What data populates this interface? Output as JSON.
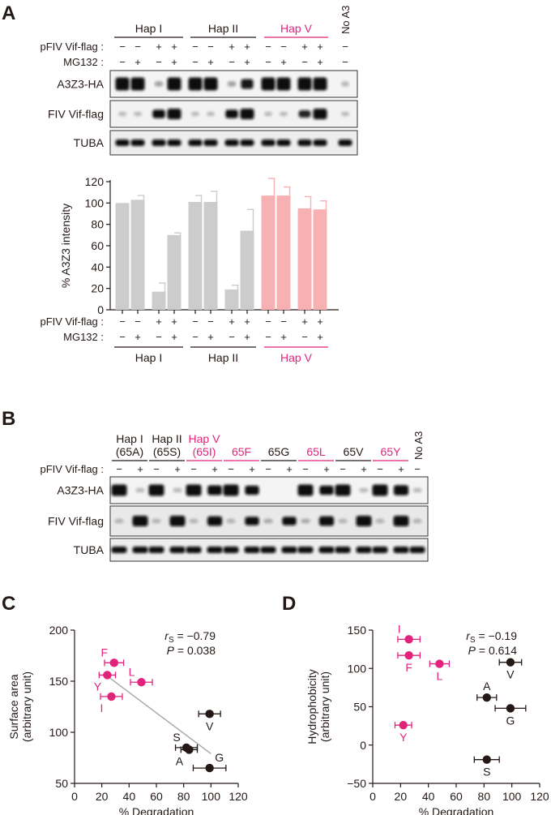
{
  "panel_labels": {
    "a": "A",
    "b": "B",
    "c": "C",
    "d": "D"
  },
  "colors": {
    "black": "#231815",
    "magenta": "#e2237c",
    "gray_bar": "#cccccc",
    "pink_bar": "#f7b1b3",
    "fit_line": "#aaaaaa"
  },
  "panel_a": {
    "groups": [
      "Hap I",
      "Hap II",
      "Hap V"
    ],
    "group_colors": [
      "#231815",
      "#231815",
      "#e2237c"
    ],
    "no_a3": "No A3",
    "row_labels": [
      "pFIV Vif-flag :",
      "MG132 :"
    ],
    "vif_signs": [
      "−",
      "−",
      "+",
      "+",
      "−",
      "−",
      "+",
      "+",
      "−",
      "−",
      "+",
      "+",
      "−"
    ],
    "mg_signs": [
      "−",
      "+",
      "−",
      "+",
      "−",
      "+",
      "−",
      "+",
      "−",
      "+",
      "−",
      "+",
      "−"
    ],
    "blot_labels": [
      "A3Z3-HA",
      "FIV Vif-flag",
      "TUBA"
    ],
    "blot_a3z3": [
      1,
      1,
      0.15,
      1,
      1,
      1,
      0.15,
      0.75,
      1,
      1,
      1,
      1,
      0.05
    ],
    "blot_vif": [
      0.05,
      0.05,
      0.8,
      1,
      0.05,
      0.05,
      0.8,
      1,
      0.05,
      0.05,
      0.7,
      1,
      0.05
    ],
    "blot_tuba": [
      1,
      1,
      1,
      1,
      1,
      1,
      1,
      1,
      1,
      1,
      1,
      1,
      1
    ]
  },
  "panel_b": {
    "headers": [
      "Hap I\n(65A)",
      "Hap II\n(65S)",
      "Hap V\n(65I)",
      "65F",
      "65G",
      "65L",
      "65V",
      "65Y"
    ],
    "header_colors": [
      "#231815",
      "#231815",
      "#e2237c",
      "#e2237c",
      "#231815",
      "#e2237c",
      "#231815",
      "#e2237c"
    ],
    "no_a3": "No A3",
    "row_label": "pFIV Vif-flag :",
    "signs": [
      "−",
      "+",
      "−",
      "+",
      "−",
      "+",
      "−",
      "+",
      "−",
      "+",
      "−",
      "+",
      "−",
      "+",
      "−",
      "+",
      "−"
    ],
    "blot_labels": [
      "A3Z3-HA",
      "FIV Vif-flag",
      "TUBA"
    ],
    "blot_a3z3": [
      1,
      0.05,
      1,
      0.05,
      1,
      0.85,
      1,
      0.8,
      0,
      0,
      1,
      0.8,
      1,
      0.05,
      1,
      0.9,
      0.05
    ],
    "blot_vif": [
      0.05,
      1,
      0.05,
      1,
      0.05,
      0.9,
      0.05,
      0.8,
      0.1,
      0.8,
      0.1,
      0.9,
      0.05,
      1,
      0.05,
      1,
      0.05
    ],
    "blot_tuba": [
      1,
      1,
      1,
      1,
      1,
      1,
      1,
      1,
      1,
      1,
      1,
      1,
      1,
      1,
      1,
      1,
      1
    ]
  },
  "chart_data": [
    {
      "type": "bar",
      "ylabel": "% A3Z3 intensity",
      "ylim": [
        0,
        120
      ],
      "yticks": [
        0,
        20,
        40,
        60,
        80,
        100,
        120
      ],
      "values": [
        100,
        103,
        17,
        70,
        101,
        101,
        19,
        74,
        107,
        107,
        95,
        94
      ],
      "errors": [
        0,
        4,
        8,
        2,
        6,
        10,
        4,
        20,
        16,
        8,
        11,
        8
      ],
      "bar_colors": [
        "#cccccc",
        "#cccccc",
        "#cccccc",
        "#cccccc",
        "#cccccc",
        "#cccccc",
        "#cccccc",
        "#cccccc",
        "#f7b1b3",
        "#f7b1b3",
        "#f7b1b3",
        "#f7b1b3"
      ],
      "row_labels": [
        "pFIV Vif-flag :",
        "MG132 :"
      ],
      "vif_signs": [
        "−",
        "−",
        "+",
        "+",
        "−",
        "−",
        "+",
        "+",
        "−",
        "−",
        "+",
        "+"
      ],
      "mg_signs": [
        "−",
        "+",
        "−",
        "+",
        "−",
        "+",
        "−",
        "+",
        "−",
        "+",
        "−",
        "+"
      ],
      "groups": [
        "Hap I",
        "Hap II",
        "Hap V"
      ],
      "group_colors": [
        "#231815",
        "#231815",
        "#e2237c"
      ]
    },
    {
      "type": "scatter",
      "xlabel": "% Degradation",
      "ylabel_lines": [
        "Surface area",
        "(arbitrary unit)"
      ],
      "xlim": [
        0,
        120
      ],
      "ylim": [
        50,
        200
      ],
      "xticks": [
        0,
        20,
        40,
        60,
        80,
        100,
        120
      ],
      "yticks": [
        50,
        100,
        150,
        200
      ],
      "stat_r": "r",
      "stat_r_sub": "S",
      "stat_r_val": " = −0.79",
      "stat_p": "P",
      "stat_p_val": " = 0.038",
      "points": [
        {
          "label": "F",
          "x": 29,
          "y": 168,
          "xerr": 7,
          "color": "#e2237c",
          "lpos": "tl"
        },
        {
          "label": "Y",
          "x": 24,
          "y": 156,
          "xerr": 6,
          "color": "#e2237c",
          "lpos": "bl"
        },
        {
          "label": "L",
          "x": 49,
          "y": 149,
          "xerr": 8,
          "color": "#e2237c",
          "lpos": "tl"
        },
        {
          "label": "I",
          "x": 27,
          "y": 135,
          "xerr": 8,
          "color": "#e2237c",
          "lpos": "bl"
        },
        {
          "label": "V",
          "x": 99,
          "y": 118,
          "xerr": 8,
          "color": "#231815",
          "lpos": "b"
        },
        {
          "label": "S",
          "x": 82,
          "y": 85,
          "xerr": 8,
          "color": "#231815",
          "lpos": "tl"
        },
        {
          "label": "A",
          "x": 84,
          "y": 83,
          "xerr": 6,
          "color": "#231815",
          "lpos": "bl"
        },
        {
          "label": "G",
          "x": 99,
          "y": 65,
          "xerr": 12,
          "color": "#231815",
          "lpos": "tr"
        }
      ],
      "fit_line": {
        "x": [
          24,
          100
        ],
        "y": [
          155,
          79
        ]
      }
    },
    {
      "type": "scatter",
      "xlabel": "% Degradation",
      "ylabel_lines": [
        "Hydrophobicity",
        "(arbitrary unit)"
      ],
      "xlim": [
        0,
        120
      ],
      "ylim": [
        -50,
        150
      ],
      "xticks": [
        0,
        20,
        40,
        60,
        80,
        100,
        120
      ],
      "yticks": [
        -50,
        0,
        50,
        100,
        150
      ],
      "stat_r": "r",
      "stat_r_sub": "S",
      "stat_r_val": " = −0.19",
      "stat_p": "P",
      "stat_p_val": " = 0.614",
      "points": [
        {
          "label": "I",
          "x": 26,
          "y": 138,
          "xerr": 8,
          "color": "#e2237c",
          "lpos": "tl"
        },
        {
          "label": "F",
          "x": 26,
          "y": 117,
          "xerr": 8,
          "color": "#e2237c",
          "lpos": "b"
        },
        {
          "label": "L",
          "x": 48,
          "y": 106,
          "xerr": 7,
          "color": "#e2237c",
          "lpos": "b"
        },
        {
          "label": "Y",
          "x": 22,
          "y": 26,
          "xerr": 6,
          "color": "#e2237c",
          "lpos": "b"
        },
        {
          "label": "V",
          "x": 99,
          "y": 108,
          "xerr": 8,
          "color": "#231815",
          "lpos": "b"
        },
        {
          "label": "A",
          "x": 82,
          "y": 62,
          "xerr": 7,
          "color": "#231815",
          "lpos": "t"
        },
        {
          "label": "G",
          "x": 99,
          "y": 48,
          "xerr": 11,
          "color": "#231815",
          "lpos": "b"
        },
        {
          "label": "S",
          "x": 82,
          "y": -19,
          "xerr": 9,
          "color": "#231815",
          "lpos": "b"
        }
      ]
    }
  ]
}
